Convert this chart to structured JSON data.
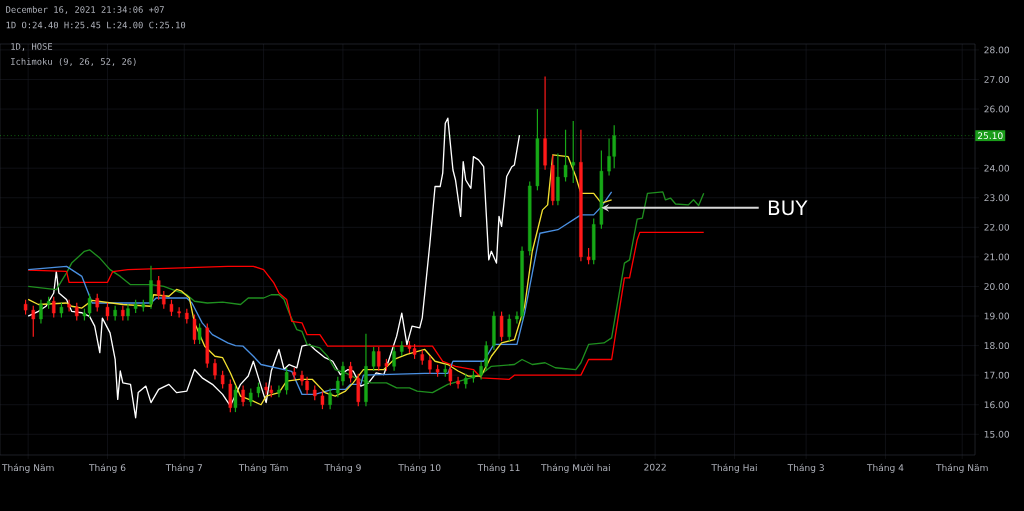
{
  "chart_data": {
    "type": "candlestick",
    "title": "1D, HOSE",
    "subtitle": "Ichimoku (9, 26, 52, 26)",
    "annotations": [
      "December 16, 2021 21:34:06 +07",
      "1D O:24.40 H:25.45 L:24.00 C:25.10",
      {
        "text": "BUY",
        "x": "2021-12-11",
        "y": 22.66
      }
    ],
    "x": [
      "2021-04-30",
      "2021-05-03",
      "2021-05-06",
      "2021-05-09",
      "2021-05-11",
      "2021-05-14",
      "2021-05-17",
      "2021-05-20",
      "2021-05-23",
      "2021-05-25",
      "2021-05-28",
      "2021-06-01",
      "2021-06-04",
      "2021-06-07",
      "2021-06-09",
      "2021-06-12",
      "2021-06-15",
      "2021-06-18",
      "2021-06-21",
      "2021-06-23",
      "2021-06-26",
      "2021-06-29",
      "2021-07-02",
      "2021-07-05",
      "2021-07-07",
      "2021-07-10",
      "2021-07-13",
      "2021-07-16",
      "2021-07-19",
      "2021-07-21",
      "2021-07-24",
      "2021-07-27",
      "2021-07-30",
      "2021-08-02",
      "2021-08-04",
      "2021-08-07",
      "2021-08-10",
      "2021-08-13",
      "2021-08-16",
      "2021-08-18",
      "2021-08-21",
      "2021-08-24",
      "2021-08-27",
      "2021-08-30",
      "2021-09-01",
      "2021-09-04",
      "2021-09-07",
      "2021-09-10",
      "2021-09-13",
      "2021-09-15",
      "2021-09-18",
      "2021-09-21",
      "2021-09-24",
      "2021-09-27",
      "2021-09-29",
      "2021-10-02",
      "2021-10-05",
      "2021-10-08",
      "2021-10-11",
      "2021-10-13",
      "2021-10-16",
      "2021-10-19",
      "2021-10-22",
      "2021-10-25",
      "2021-10-27",
      "2021-10-30",
      "2021-11-02",
      "2021-11-05",
      "2021-11-08",
      "2021-11-10",
      "2021-11-13",
      "2021-11-16",
      "2021-11-19",
      "2021-11-22",
      "2021-11-24",
      "2021-11-27",
      "2021-11-30",
      "2021-12-03",
      "2021-12-06",
      "2021-12-08",
      "2021-12-11",
      "2021-12-14",
      "2021-12-16"
    ],
    "ohlc": [
      [
        19.4,
        19.55,
        19.05,
        19.2
      ],
      [
        19.2,
        19.35,
        18.3,
        18.9
      ],
      [
        18.9,
        19.55,
        18.75,
        19.4
      ],
      [
        19.4,
        19.65,
        19.25,
        19.5
      ],
      [
        19.5,
        19.65,
        18.95,
        19.1
      ],
      [
        19.1,
        19.45,
        18.95,
        19.3
      ],
      [
        19.4,
        19.55,
        19.15,
        19.3
      ],
      [
        19.3,
        19.45,
        18.85,
        19.0
      ],
      [
        19.0,
        19.25,
        18.85,
        19.1
      ],
      [
        19.1,
        19.75,
        18.95,
        19.6
      ],
      [
        19.6,
        19.75,
        19.15,
        19.3
      ],
      [
        19.3,
        19.45,
        18.85,
        19.0
      ],
      [
        19.0,
        19.35,
        18.85,
        19.2
      ],
      [
        19.2,
        19.35,
        18.85,
        19.0
      ],
      [
        19.0,
        19.4,
        18.85,
        19.25
      ],
      [
        19.25,
        19.55,
        19.1,
        19.4
      ],
      [
        19.3,
        19.55,
        19.15,
        19.4
      ],
      [
        19.4,
        20.7,
        19.25,
        20.2
      ],
      [
        20.2,
        20.35,
        19.55,
        19.7
      ],
      [
        19.7,
        19.85,
        19.25,
        19.4
      ],
      [
        19.4,
        19.55,
        19.0,
        19.15
      ],
      [
        19.15,
        19.3,
        18.95,
        19.1
      ],
      [
        19.1,
        19.25,
        18.75,
        18.9
      ],
      [
        18.9,
        19.05,
        18.05,
        18.2
      ],
      [
        18.2,
        18.75,
        18.05,
        18.6
      ],
      [
        18.6,
        18.75,
        17.25,
        17.4
      ],
      [
        17.4,
        17.55,
        16.85,
        17.0
      ],
      [
        17.0,
        17.15,
        16.55,
        16.7
      ],
      [
        16.7,
        16.85,
        15.75,
        15.9
      ],
      [
        15.9,
        16.65,
        15.75,
        16.5
      ],
      [
        16.5,
        16.65,
        15.95,
        16.1
      ],
      [
        16.1,
        16.55,
        15.95,
        16.4
      ],
      [
        16.4,
        16.75,
        16.25,
        16.6
      ],
      [
        16.6,
        16.75,
        16.35,
        16.5
      ],
      [
        16.5,
        16.65,
        16.25,
        16.4
      ],
      [
        16.4,
        16.65,
        16.25,
        16.5
      ],
      [
        16.5,
        17.25,
        16.35,
        17.1
      ],
      [
        17.1,
        17.25,
        16.85,
        17.0
      ],
      [
        17.0,
        17.15,
        16.65,
        16.8
      ],
      [
        16.8,
        16.95,
        16.35,
        16.5
      ],
      [
        16.5,
        16.65,
        16.15,
        16.3
      ],
      [
        16.3,
        16.45,
        15.85,
        16.0
      ],
      [
        16.0,
        16.55,
        15.85,
        16.4
      ],
      [
        16.4,
        16.95,
        16.25,
        16.8
      ],
      [
        16.8,
        17.45,
        16.65,
        17.3
      ],
      [
        17.3,
        17.45,
        16.75,
        16.9
      ],
      [
        16.9,
        17.05,
        15.95,
        16.1
      ],
      [
        16.1,
        18.4,
        15.95,
        17.3
      ],
      [
        17.3,
        17.95,
        17.15,
        17.8
      ],
      [
        17.8,
        17.95,
        17.15,
        17.3
      ],
      [
        17.4,
        17.55,
        17.15,
        17.3
      ],
      [
        17.3,
        17.95,
        17.15,
        17.8
      ],
      [
        17.8,
        18.15,
        17.65,
        18.0
      ],
      [
        18.0,
        18.15,
        17.75,
        17.9
      ],
      [
        17.9,
        18.05,
        17.55,
        17.7
      ],
      [
        17.7,
        17.85,
        17.35,
        17.5
      ],
      [
        17.5,
        17.65,
        17.05,
        17.2
      ],
      [
        17.2,
        17.35,
        16.95,
        17.1
      ],
      [
        17.1,
        17.35,
        16.95,
        17.2
      ],
      [
        17.2,
        17.35,
        16.65,
        16.8
      ],
      [
        16.8,
        16.95,
        16.55,
        16.7
      ],
      [
        16.7,
        17.05,
        16.55,
        16.9
      ],
      [
        16.9,
        17.15,
        16.75,
        17.0
      ],
      [
        17.0,
        17.45,
        16.85,
        17.3
      ],
      [
        17.3,
        18.15,
        17.15,
        18.0
      ],
      [
        18.0,
        19.15,
        17.85,
        19.0
      ],
      [
        19.0,
        19.15,
        18.15,
        18.3
      ],
      [
        18.3,
        19.05,
        18.15,
        18.9
      ],
      [
        18.9,
        19.15,
        18.75,
        19.0
      ],
      [
        19.0,
        21.35,
        18.85,
        21.2
      ],
      [
        21.2,
        23.55,
        21.05,
        23.4
      ],
      [
        23.4,
        26.0,
        23.25,
        25.0
      ],
      [
        25.0,
        27.1,
        23.95,
        24.1
      ],
      [
        24.1,
        24.45,
        22.75,
        22.9
      ],
      [
        22.9,
        24.5,
        22.75,
        23.7
      ],
      [
        23.7,
        25.3,
        23.55,
        24.1
      ],
      [
        24.1,
        25.6,
        23.5,
        24.2
      ],
      [
        24.2,
        25.3,
        20.85,
        21.0
      ],
      [
        21.0,
        21.3,
        20.75,
        20.9
      ],
      [
        20.9,
        22.3,
        20.75,
        22.1
      ],
      [
        22.1,
        24.6,
        21.95,
        23.9
      ],
      [
        23.9,
        25.0,
        23.75,
        24.4
      ],
      [
        24.4,
        25.45,
        24.0,
        25.1
      ]
    ],
    "colors": [
      "#ff1a1a",
      "#ff1a1a",
      "#17a817",
      "#17a817",
      "#ff1a1a",
      "#17a817",
      "#ff1a1a",
      "#ff1a1a",
      "#17a817",
      "#17a817",
      "#ff1a1a",
      "#ff1a1a",
      "#17a817",
      "#ff1a1a",
      "#17a817",
      "#17a817",
      "#17a817",
      "#17a817",
      "#ff1a1a",
      "#ff1a1a",
      "#ff1a1a",
      "#ff1a1a",
      "#ff1a1a",
      "#ff1a1a",
      "#17a817",
      "#ff1a1a",
      "#ff1a1a",
      "#ff1a1a",
      "#ff1a1a",
      "#17a817",
      "#ff1a1a",
      "#17a817",
      "#17a817",
      "#ff1a1a",
      "#ff1a1a",
      "#17a817",
      "#17a817",
      "#ff1a1a",
      "#ff1a1a",
      "#ff1a1a",
      "#ff1a1a",
      "#ff1a1a",
      "#17a817",
      "#17a817",
      "#17a817",
      "#ff1a1a",
      "#ff1a1a",
      "#17a817",
      "#17a817",
      "#ff1a1a",
      "#ff1a1a",
      "#17a817",
      "#17a817",
      "#ff1a1a",
      "#ff1a1a",
      "#ff1a1a",
      "#ff1a1a",
      "#ff1a1a",
      "#17a817",
      "#ff1a1a",
      "#ff1a1a",
      "#17a817",
      "#17a817",
      "#17a817",
      "#17a817",
      "#17a817",
      "#ff1a1a",
      "#17a817",
      "#17a817",
      "#17a817",
      "#17a817",
      "#17a817",
      "#ff1a1a",
      "#ff1a1a",
      "#17a817",
      "#17a817",
      "#17a817",
      "#ff1a1a",
      "#ff1a1a",
      "#17a817",
      "#17a817",
      "#17a817",
      "#17a817"
    ],
    "series": [
      {
        "type": "line",
        "color": "#ffffff",
        "x": [
          "2021-05-01",
          "2021-05-05",
          "2021-05-08",
          "2021-05-11",
          "2021-05-12",
          "2021-05-13",
          "2021-05-16",
          "2021-05-18",
          "2021-05-22",
          "2021-05-25",
          "2021-05-27",
          "2021-05-29",
          "2021-05-30",
          "2021-06-02",
          "2021-06-04",
          "2021-06-05",
          "2021-06-06",
          "2021-06-07",
          "2021-06-10",
          "2021-06-12",
          "2021-06-13",
          "2021-06-16",
          "2021-06-18",
          "2021-06-21",
          "2021-06-25",
          "2021-06-28",
          "2021-07-02",
          "2021-07-05",
          "2021-07-08",
          "2021-07-12",
          "2021-07-16",
          "2021-07-19",
          "2021-07-23",
          "2021-07-26",
          "2021-07-28",
          "2021-07-31",
          "2021-08-02",
          "2021-08-04",
          "2021-08-07",
          "2021-08-09",
          "2021-08-11",
          "2021-08-14",
          "2021-08-16",
          "2021-08-19",
          "2021-08-21",
          "2021-08-25",
          "2021-08-28",
          "2021-08-31",
          "2021-09-03",
          "2021-09-05",
          "2021-09-08",
          "2021-09-11",
          "2021-09-14",
          "2021-09-17",
          "2021-09-19",
          "2021-09-22",
          "2021-09-24",
          "2021-09-26",
          "2021-09-28",
          "2021-10-01",
          "2021-10-02",
          "2021-10-03",
          "2021-10-05",
          "2021-10-07",
          "2021-10-09",
          "2021-10-10",
          "2021-10-11",
          "2021-10-12",
          "2021-10-14",
          "2021-10-15",
          "2021-10-17",
          "2021-10-18",
          "2021-10-19",
          "2021-10-21",
          "2021-10-22",
          "2021-10-24",
          "2021-10-26",
          "2021-10-28",
          "2021-10-29",
          "2021-10-31",
          "2021-11-01",
          "2021-11-02",
          "2021-11-04",
          "2021-11-06",
          "2021-11-07",
          "2021-11-09"
        ],
        "values": [
          19.0,
          19.16,
          19.33,
          19.78,
          20.5,
          19.78,
          19.56,
          19.16,
          19.11,
          18.99,
          18.66,
          17.76,
          18.93,
          18.43,
          17.53,
          16.18,
          17.14,
          16.74,
          16.69,
          15.56,
          16.41,
          16.63,
          16.07,
          16.52,
          16.69,
          16.41,
          16.46,
          17.19,
          16.91,
          16.69,
          16.35,
          15.96,
          16.69,
          16.97,
          17.47,
          16.63,
          16.07,
          17.14,
          17.87,
          17.2,
          17.36,
          17.25,
          17.98,
          18.04,
          17.87,
          17.59,
          17.47,
          17.02,
          17.19,
          17.14,
          16.63,
          16.74,
          17.08,
          17.02,
          17.53,
          18.32,
          19.1,
          18.03,
          18.66,
          18.6,
          18.94,
          19.78,
          21.47,
          23.38,
          23.38,
          23.83,
          25.52,
          25.69,
          23.94,
          23.6,
          22.37,
          24.22,
          23.6,
          23.32,
          24.39,
          24.28,
          24.05,
          20.9,
          21.19,
          20.79,
          22.37,
          22.03,
          23.72,
          24.05,
          24.11,
          25.12
        ]
      },
      {
        "type": "line",
        "color": "#1f8f1f",
        "x": [
          "2021-05-01",
          "2021-05-12",
          "2021-05-16",
          "2021-05-18",
          "2021-05-23",
          "2021-05-25",
          "2021-05-29",
          "2021-06-02",
          "2021-06-06",
          "2021-06-10",
          "2021-06-18",
          "2021-06-23",
          "2021-06-28",
          "2021-07-02",
          "2021-07-05",
          "2021-07-10",
          "2021-07-16",
          "2021-07-23",
          "2021-07-26",
          "2021-08-01",
          "2021-08-04",
          "2021-08-07",
          "2021-08-09",
          "2021-08-11",
          "2021-08-14",
          "2021-08-16",
          "2021-08-18",
          "2021-08-23",
          "2021-08-26",
          "2021-08-29",
          "2021-09-02",
          "2021-09-07",
          "2021-09-12",
          "2021-09-18",
          "2021-09-22",
          "2021-09-27",
          "2021-09-30",
          "2021-10-06",
          "2021-10-12",
          "2021-10-19",
          "2021-10-25",
          "2021-10-29",
          "2021-11-07",
          "2021-11-10",
          "2021-11-14",
          "2021-11-19",
          "2021-11-23",
          "2021-12-01",
          "2021-12-03",
          "2021-12-06",
          "2021-12-12",
          "2021-12-15",
          "2021-12-20",
          "2021-12-22",
          "2021-12-25",
          "2021-12-27",
          "2021-12-29",
          "2022-01-04",
          "2022-01-05",
          "2022-01-07",
          "2022-01-09",
          "2022-01-14",
          "2022-01-16",
          "2022-01-18",
          "2022-01-20"
        ],
        "values": [
          20.0,
          19.89,
          20.46,
          20.79,
          21.19,
          21.24,
          20.96,
          20.57,
          20.34,
          20.06,
          20.06,
          20.0,
          19.84,
          19.72,
          19.5,
          19.44,
          19.47,
          19.39,
          19.61,
          19.61,
          19.72,
          19.72,
          19.56,
          19.1,
          18.54,
          18.48,
          18.04,
          17.92,
          17.64,
          17.19,
          17.08,
          16.86,
          16.74,
          16.74,
          16.57,
          16.57,
          16.46,
          16.41,
          16.69,
          16.86,
          17.02,
          17.3,
          17.36,
          17.53,
          17.36,
          17.42,
          17.25,
          17.19,
          17.42,
          18.04,
          18.09,
          18.26,
          20.79,
          20.9,
          22.28,
          22.31,
          23.15,
          23.2,
          22.93,
          22.99,
          22.79,
          22.76,
          22.93,
          22.74,
          23.15
        ]
      },
      {
        "type": "line",
        "color": "#ff0000",
        "x": [
          "2021-05-01",
          "2021-05-16",
          "2021-05-17",
          "2021-06-01",
          "2021-06-03",
          "2021-06-09",
          "2021-07-18",
          "2021-07-28",
          "2021-08-01",
          "2021-08-05",
          "2021-08-07",
          "2021-08-10",
          "2021-08-12",
          "2021-08-16",
          "2021-08-18",
          "2021-08-23",
          "2021-08-26",
          "2021-10-06",
          "2021-10-10",
          "2021-10-15",
          "2021-10-22",
          "2021-10-25",
          "2021-11-05",
          "2021-11-07",
          "2021-12-03",
          "2021-12-06",
          "2021-12-15",
          "2021-12-20",
          "2021-12-22",
          "2021-12-25",
          "2021-12-26",
          "2022-01-20"
        ],
        "values": [
          20.55,
          20.51,
          20.14,
          20.14,
          20.5,
          20.57,
          20.68,
          20.68,
          20.57,
          20.12,
          19.78,
          19.56,
          18.82,
          18.77,
          18.37,
          18.37,
          17.98,
          17.98,
          17.47,
          17.3,
          17.19,
          16.91,
          16.86,
          17.0,
          17.0,
          17.53,
          17.53,
          20.29,
          20.29,
          21.58,
          21.83,
          21.83
        ]
      },
      {
        "type": "line",
        "color": "#4a90e2",
        "x": [
          "2021-05-01",
          "2021-05-16",
          "2021-05-22",
          "2021-05-25",
          "2021-05-26",
          "2021-06-18",
          "2021-06-20",
          "2021-07-02",
          "2021-07-04",
          "2021-07-08",
          "2021-07-12",
          "2021-07-18",
          "2021-07-21",
          "2021-07-24",
          "2021-07-28",
          "2021-07-31",
          "2021-08-09",
          "2021-08-12",
          "2021-08-16",
          "2021-08-21",
          "2021-08-28",
          "2021-09-02",
          "2021-09-04",
          "2021-09-08",
          "2021-09-09",
          "2021-10-03",
          "2021-10-12",
          "2021-10-14",
          "2021-10-26",
          "2021-10-30",
          "2021-11-08",
          "2021-11-11",
          "2021-11-14",
          "2021-11-17",
          "2021-11-24",
          "2021-12-03",
          "2021-12-08",
          "2021-12-11",
          "2021-12-15"
        ],
        "values": [
          20.57,
          20.68,
          20.34,
          19.67,
          19.44,
          19.44,
          19.61,
          19.61,
          19.44,
          18.77,
          18.37,
          18.09,
          18.0,
          17.98,
          17.64,
          17.36,
          17.19,
          17.13,
          16.35,
          16.35,
          16.52,
          16.52,
          16.69,
          16.69,
          17.0,
          17.06,
          17.06,
          17.47,
          17.47,
          18.04,
          18.04,
          19.1,
          20.45,
          21.8,
          21.92,
          22.42,
          22.42,
          22.7,
          23.2
        ]
      },
      {
        "type": "line",
        "color": "#f2e030",
        "x": [
          "2021-05-01",
          "2021-05-05",
          "2021-05-16",
          "2021-05-18",
          "2021-05-22",
          "2021-05-26",
          "2021-06-07",
          "2021-06-18",
          "2021-06-19",
          "2021-06-25",
          "2021-06-28",
          "2021-06-30",
          "2021-07-03",
          "2021-07-05",
          "2021-07-09",
          "2021-07-13",
          "2021-07-16",
          "2021-07-19",
          "2021-07-23",
          "2021-07-28",
          "2021-07-31",
          "2021-08-02",
          "2021-08-07",
          "2021-08-10",
          "2021-08-15",
          "2021-08-20",
          "2021-08-25",
          "2021-08-29",
          "2021-09-02",
          "2021-09-05",
          "2021-09-09",
          "2021-09-17",
          "2021-09-21",
          "2021-09-26",
          "2021-10-03",
          "2021-10-07",
          "2021-10-12",
          "2021-10-16",
          "2021-10-20",
          "2021-10-25",
          "2021-10-29",
          "2021-11-02",
          "2021-11-07",
          "2021-11-11",
          "2021-11-14",
          "2021-11-18",
          "2021-11-20",
          "2021-11-22",
          "2021-11-28",
          "2021-12-01",
          "2021-12-03",
          "2021-12-08",
          "2021-12-11",
          "2021-12-15"
        ],
        "values": [
          19.56,
          19.39,
          19.44,
          19.33,
          19.27,
          19.53,
          19.39,
          19.33,
          19.72,
          19.67,
          19.9,
          19.84,
          19.61,
          18.77,
          17.98,
          17.64,
          17.59,
          17.08,
          16.29,
          16.12,
          16.0,
          16.29,
          16.41,
          16.8,
          16.86,
          16.86,
          16.41,
          16.29,
          16.46,
          16.74,
          17.19,
          17.19,
          17.53,
          17.7,
          17.87,
          17.47,
          17.36,
          17.14,
          16.97,
          16.97,
          17.64,
          18.09,
          18.2,
          19.33,
          21.19,
          22.59,
          22.76,
          24.45,
          24.39,
          23.72,
          23.15,
          23.15,
          22.82,
          22.93
        ]
      }
    ],
    "ref_lines": [
      {
        "axis": "y",
        "value": 25.1,
        "label": "25.10",
        "color": "#1a9c1a",
        "line_style": "dotted"
      }
    ],
    "xlim": [
      "2021-04-20",
      "2022-05-06"
    ],
    "ylim": [
      14.3,
      28.2
    ],
    "xticks": [
      {
        "value": "2021-05-01",
        "label": "Tháng Năm"
      },
      {
        "value": "2021-06-01",
        "label": "Tháng 6"
      },
      {
        "value": "2021-07-01",
        "label": "Tháng 7"
      },
      {
        "value": "2021-08-01",
        "label": "Tháng Tám"
      },
      {
        "value": "2021-09-01",
        "label": "Tháng 9"
      },
      {
        "value": "2021-10-01",
        "label": "Tháng 10"
      },
      {
        "value": "2021-11-01",
        "label": "Tháng 11"
      },
      {
        "value": "2021-12-01",
        "label": "Tháng Mười hai"
      },
      {
        "value": "2022-01-01",
        "label": "2022"
      },
      {
        "value": "2022-02-01",
        "label": "Tháng Hai"
      },
      {
        "value": "2022-03-01",
        "label": "Tháng 3"
      },
      {
        "value": "2022-04-01",
        "label": "Tháng 4"
      },
      {
        "value": "2022-05-01",
        "label": "Tháng Năm"
      }
    ],
    "yticks": [
      {
        "value": 15,
        "label": "15.00"
      },
      {
        "value": 16,
        "label": "16.00"
      },
      {
        "value": 17,
        "label": "17.00"
      },
      {
        "value": 18,
        "label": "18.00"
      },
      {
        "value": 19,
        "label": "19.00"
      },
      {
        "value": 20,
        "label": "20.00"
      },
      {
        "value": 21,
        "label": "21.00"
      },
      {
        "value": 22,
        "label": "22.00"
      },
      {
        "value": 23,
        "label": "23.00"
      },
      {
        "value": 24,
        "label": "24.00"
      },
      {
        "value": 25,
        "label": null
      },
      {
        "value": 26,
        "label": "26.00"
      },
      {
        "value": 27,
        "label": "27.00"
      },
      {
        "value": 28,
        "label": "28.00"
      }
    ],
    "grid": true
  }
}
